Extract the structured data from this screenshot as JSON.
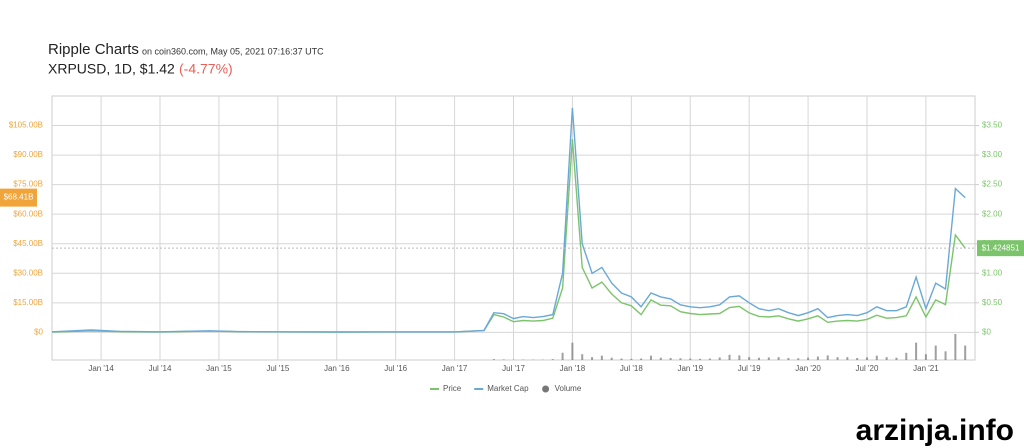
{
  "chart_data": {
    "type": "line",
    "title": "Ripple Charts",
    "subtitle": "on coin360.com, May 05, 2021 07:16:37 UTC",
    "symbol_line": "XRPUSD, 1D, $1.42",
    "change": "(-4.77%)",
    "x": [
      "2013-08",
      "2013-12",
      "2014-03",
      "2014-07",
      "2014-12",
      "2015-03",
      "2015-07",
      "2016-01",
      "2016-07",
      "2017-01",
      "2017-04",
      "2017-05",
      "2017-06",
      "2017-07",
      "2017-08",
      "2017-09",
      "2017-10",
      "2017-11",
      "2017-12",
      "2018-01",
      "2018-02",
      "2018-03",
      "2018-04",
      "2018-05",
      "2018-06",
      "2018-07",
      "2018-08",
      "2018-09",
      "2018-10",
      "2018-11",
      "2018-12",
      "2019-01",
      "2019-02",
      "2019-03",
      "2019-04",
      "2019-05",
      "2019-06",
      "2019-07",
      "2019-08",
      "2019-09",
      "2019-10",
      "2019-11",
      "2019-12",
      "2020-01",
      "2020-02",
      "2020-03",
      "2020-04",
      "2020-05",
      "2020-06",
      "2020-07",
      "2020-08",
      "2020-09",
      "2020-10",
      "2020-11",
      "2020-12",
      "2021-01",
      "2021-02",
      "2021-03",
      "2021-04",
      "2021-05"
    ],
    "xlim": [
      "2013-08",
      "2021-06"
    ],
    "xticks": [
      {
        "value": "2014-01",
        "label": "Jan '14"
      },
      {
        "value": "2014-07",
        "label": "Jul '14"
      },
      {
        "value": "2015-01",
        "label": "Jan '15"
      },
      {
        "value": "2015-07",
        "label": "Jul '15"
      },
      {
        "value": "2016-01",
        "label": "Jan '16"
      },
      {
        "value": "2016-07",
        "label": "Jul '16"
      },
      {
        "value": "2017-01",
        "label": "Jan '17"
      },
      {
        "value": "2017-07",
        "label": "Jul '17"
      },
      {
        "value": "2018-01",
        "label": "Jan '18"
      },
      {
        "value": "2018-07",
        "label": "Jul '18"
      },
      {
        "value": "2019-01",
        "label": "Jan '19"
      },
      {
        "value": "2019-07",
        "label": "Jul '19"
      },
      {
        "value": "2020-01",
        "label": "Jan '20"
      },
      {
        "value": "2020-07",
        "label": "Jul '20"
      },
      {
        "value": "2021-01",
        "label": "Jan '21"
      }
    ],
    "ylim": [
      -12,
      120
    ],
    "yticks": [
      {
        "value": 0,
        "label": "$0"
      },
      {
        "value": 15,
        "label": "$15.00B"
      },
      {
        "value": 30,
        "label": "$30.00B"
      },
      {
        "value": 45,
        "label": "$45.00B"
      },
      {
        "value": 60,
        "label": "$60.00B"
      },
      {
        "value": 75,
        "label": "$75.00B"
      },
      {
        "value": 90,
        "label": "$90.00B"
      },
      {
        "value": 105,
        "label": "$105.00B"
      }
    ],
    "y2lim": [
      -0.4,
      4.0
    ],
    "y2ticks": [
      {
        "value": 0,
        "label": "$0"
      },
      {
        "value": 0.5,
        "label": "$0.50"
      },
      {
        "value": 1,
        "label": "$1.00"
      },
      {
        "value": 1.5,
        "label": "$1.50"
      },
      {
        "value": 2,
        "label": "$2.00"
      },
      {
        "value": 2.5,
        "label": "$2.50"
      },
      {
        "value": 3,
        "label": "$3.00"
      },
      {
        "value": 3.5,
        "label": "$3.50"
      }
    ],
    "grid": true,
    "y_color": "#f0a43a",
    "y2_color": "#7cc46b",
    "series": [
      {
        "name": "Price",
        "color": "#7cc46b",
        "axis": "y2",
        "values": [
          0.006,
          0.025,
          0.012,
          0.006,
          0.022,
          0.012,
          0.008,
          0.006,
          0.007,
          0.007,
          0.03,
          0.3,
          0.26,
          0.18,
          0.2,
          0.19,
          0.2,
          0.24,
          0.75,
          3.27,
          1.1,
          0.75,
          0.85,
          0.65,
          0.5,
          0.45,
          0.3,
          0.55,
          0.46,
          0.45,
          0.35,
          0.32,
          0.3,
          0.31,
          0.32,
          0.42,
          0.44,
          0.33,
          0.27,
          0.26,
          0.28,
          0.23,
          0.19,
          0.23,
          0.28,
          0.17,
          0.19,
          0.2,
          0.19,
          0.22,
          0.29,
          0.24,
          0.25,
          0.28,
          0.6,
          0.26,
          0.55,
          0.47,
          1.65,
          1.424851
        ]
      },
      {
        "name": "Market Cap",
        "color": "#6aa8d8",
        "axis": "y",
        "values": [
          0.3,
          1.2,
          0.5,
          0.3,
          0.8,
          0.4,
          0.3,
          0.2,
          0.25,
          0.25,
          1,
          10,
          9.5,
          7,
          8,
          7.5,
          8,
          9,
          30,
          114,
          45,
          30,
          33,
          25,
          20,
          18,
          13,
          20,
          18,
          17,
          14,
          13,
          12.5,
          13,
          14,
          18,
          18.5,
          15,
          12,
          11,
          12,
          10,
          8.5,
          10,
          12,
          7.5,
          8.5,
          9,
          8.5,
          10,
          13,
          11,
          11,
          13,
          28,
          12,
          25,
          22,
          73,
          68.41
        ]
      },
      {
        "name": "Volume",
        "color": "#777777",
        "type": "bar",
        "values": [
          0.001,
          0.01,
          0.001,
          0.001,
          0.005,
          0.001,
          0.001,
          0.001,
          0.001,
          0.001,
          0.01,
          0.3,
          0.2,
          0.1,
          0.15,
          0.1,
          0.1,
          0.3,
          2.5,
          6,
          2,
          1,
          1.5,
          0.8,
          0.5,
          0.4,
          0.5,
          1.5,
          0.8,
          0.7,
          0.6,
          0.5,
          0.4,
          0.5,
          0.9,
          1.8,
          1.6,
          1,
          0.8,
          0.9,
          1,
          0.7,
          0.6,
          0.8,
          1.2,
          1.6,
          1,
          1,
          0.7,
          0.9,
          1.5,
          1,
          0.8,
          2.5,
          6,
          2,
          5,
          3,
          9,
          5
        ]
      }
    ],
    "markers": [
      {
        "value": 68.41,
        "label": "$68.41B",
        "axis": "y"
      },
      {
        "value": 1.424851,
        "label": "$1.424851",
        "axis": "y2"
      }
    ]
  },
  "watermark": "arzinja.info"
}
